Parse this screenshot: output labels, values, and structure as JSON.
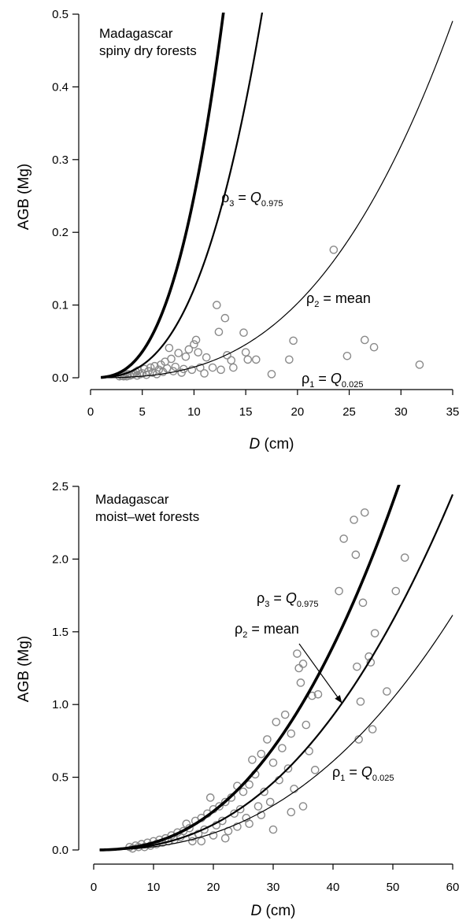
{
  "chart_data": [
    {
      "type": "scatter",
      "region_label_lines": [
        "Madagascar",
        "spiny dry forests"
      ],
      "xlabel_italic": "D",
      "xlabel_rest": " (cm)",
      "ylabel": "AGB (Mg)",
      "xlim": [
        0,
        35
      ],
      "ylim": [
        0,
        0.5
      ],
      "x_ticks": [
        0,
        5,
        10,
        15,
        20,
        25,
        30,
        35
      ],
      "x_tick_labels": [
        "0",
        "5",
        "10",
        "15",
        "20",
        "25",
        "30",
        "35"
      ],
      "y_ticks": [
        0,
        0.1,
        0.2,
        0.3,
        0.4,
        0.5
      ],
      "y_tick_labels": [
        "0.0",
        "0.1",
        "0.2",
        "0.3",
        "0.4",
        "0.5"
      ],
      "curves": [
        {
          "symbol": "ρ",
          "sub": "3",
          "operator": " = ",
          "value": "Q",
          "value_sub": "0.975",
          "value_italic": true,
          "coef": 0.000395,
          "exp": 2.8,
          "x_start": 1,
          "line_weight": "heavy"
        },
        {
          "symbol": "ρ",
          "sub": "2",
          "operator": " = ",
          "value": "mean",
          "value_sub": "",
          "value_italic": false,
          "coef": 0.000193,
          "exp": 2.8,
          "x_start": 1,
          "line_weight": "medium"
        },
        {
          "symbol": "ρ",
          "sub": "1",
          "operator": " = ",
          "value": "Q",
          "value_sub": "0.025",
          "value_italic": true,
          "coef": 2.33e-05,
          "exp": 2.8,
          "x_start": 1,
          "line_weight": "light"
        }
      ],
      "points": [
        [
          2.8,
          0.002
        ],
        [
          3.0,
          0.003
        ],
        [
          3.2,
          0.002
        ],
        [
          3.3,
          0.004
        ],
        [
          3.5,
          0.002
        ],
        [
          3.6,
          0.005
        ],
        [
          3.8,
          0.003
        ],
        [
          4.0,
          0.004
        ],
        [
          4.2,
          0.006
        ],
        [
          4.4,
          0.008
        ],
        [
          4.5,
          0.003
        ],
        [
          4.6,
          0.01
        ],
        [
          4.8,
          0.005
        ],
        [
          5.0,
          0.006
        ],
        [
          5.2,
          0.012
        ],
        [
          5.4,
          0.004
        ],
        [
          5.6,
          0.009
        ],
        [
          5.8,
          0.014
        ],
        [
          6.0,
          0.007
        ],
        [
          6.2,
          0.016
        ],
        [
          6.4,
          0.005
        ],
        [
          6.6,
          0.011
        ],
        [
          6.8,
          0.018
        ],
        [
          7.0,
          0.008
        ],
        [
          7.2,
          0.022
        ],
        [
          7.4,
          0.013
        ],
        [
          7.6,
          0.041
        ],
        [
          7.8,
          0.026
        ],
        [
          8.0,
          0.009
        ],
        [
          8.2,
          0.015
        ],
        [
          8.5,
          0.034
        ],
        [
          8.8,
          0.007
        ],
        [
          9.0,
          0.012
        ],
        [
          9.2,
          0.029
        ],
        [
          9.5,
          0.039
        ],
        [
          9.8,
          0.011
        ],
        [
          10.0,
          0.046
        ],
        [
          10.2,
          0.052
        ],
        [
          10.4,
          0.035
        ],
        [
          10.6,
          0.014
        ],
        [
          11.0,
          0.006
        ],
        [
          11.2,
          0.028
        ],
        [
          11.8,
          0.014
        ],
        [
          12.2,
          0.1
        ],
        [
          12.4,
          0.063
        ],
        [
          12.6,
          0.011
        ],
        [
          13.0,
          0.082
        ],
        [
          13.2,
          0.031
        ],
        [
          13.6,
          0.024
        ],
        [
          13.8,
          0.014
        ],
        [
          14.8,
          0.062
        ],
        [
          15.0,
          0.035
        ],
        [
          15.2,
          0.025
        ],
        [
          16.0,
          0.025
        ],
        [
          17.5,
          0.005
        ],
        [
          19.2,
          0.025
        ],
        [
          19.6,
          0.051
        ],
        [
          23.5,
          0.176
        ],
        [
          24.8,
          0.03
        ],
        [
          26.5,
          0.052
        ],
        [
          27.4,
          0.042
        ],
        [
          31.8,
          0.018
        ]
      ]
    },
    {
      "type": "scatter",
      "region_label_lines": [
        "Madagascar",
        "moist–wet forests"
      ],
      "xlabel_italic": "D",
      "xlabel_rest": " (cm)",
      "ylabel": "AGB (Mg)",
      "xlim": [
        0,
        60
      ],
      "ylim": [
        0,
        2.5
      ],
      "x_ticks": [
        0,
        10,
        20,
        30,
        40,
        50,
        60
      ],
      "x_tick_labels": [
        "0",
        "10",
        "20",
        "30",
        "40",
        "50",
        "60"
      ],
      "y_ticks": [
        0,
        0.5,
        1.0,
        1.5,
        2.0,
        2.5
      ],
      "y_tick_labels": [
        "0.0",
        "0.5",
        "1.0",
        "1.5",
        "2.0",
        "2.5"
      ],
      "curves": [
        {
          "symbol": "ρ",
          "sub": "3",
          "operator": " = ",
          "value": "Q",
          "value_sub": "0.975",
          "value_italic": true,
          "coef": 0.0002,
          "exp": 2.4,
          "x_start": 1,
          "line_weight": "heavy"
        },
        {
          "symbol": "ρ",
          "sub": "2",
          "operator": " = ",
          "value": "mean",
          "value_sub": "",
          "value_italic": false,
          "coef": 0.000132,
          "exp": 2.4,
          "x_start": 1,
          "line_weight": "medium"
        },
        {
          "symbol": "ρ",
          "sub": "1",
          "operator": " = ",
          "value": "Q",
          "value_sub": "0.025",
          "value_italic": true,
          "coef": 8.72e-05,
          "exp": 2.4,
          "x_start": 1,
          "line_weight": "light"
        }
      ],
      "points": [
        [
          6,
          0.02
        ],
        [
          6.5,
          0.01
        ],
        [
          7,
          0.03
        ],
        [
          7.5,
          0.02
        ],
        [
          8,
          0.04
        ],
        [
          8.5,
          0.02
        ],
        [
          9,
          0.05
        ],
        [
          9.5,
          0.03
        ],
        [
          10,
          0.06
        ],
        [
          10.5,
          0.04
        ],
        [
          11,
          0.07
        ],
        [
          11.5,
          0.05
        ],
        [
          12,
          0.08
        ],
        [
          12.5,
          0.06
        ],
        [
          13,
          0.1
        ],
        [
          13.5,
          0.07
        ],
        [
          14,
          0.12
        ],
        [
          14.5,
          0.09
        ],
        [
          15,
          0.13
        ],
        [
          15.5,
          0.18
        ],
        [
          16,
          0.15
        ],
        [
          16.5,
          0.09
        ],
        [
          17,
          0.2
        ],
        [
          17.5,
          0.11
        ],
        [
          18,
          0.22
        ],
        [
          18.5,
          0.14
        ],
        [
          19,
          0.25
        ],
        [
          19.5,
          0.36
        ],
        [
          20,
          0.28
        ],
        [
          20.5,
          0.17
        ],
        [
          21,
          0.3
        ],
        [
          21.5,
          0.2
        ],
        [
          22,
          0.33
        ],
        [
          22.5,
          0.13
        ],
        [
          23,
          0.36
        ],
        [
          23.5,
          0.25
        ],
        [
          24,
          0.44
        ],
        [
          24.5,
          0.28
        ],
        [
          25,
          0.4
        ],
        [
          25.5,
          0.22
        ],
        [
          26,
          0.45
        ],
        [
          26.5,
          0.62
        ],
        [
          27,
          0.52
        ],
        [
          27.5,
          0.3
        ],
        [
          28,
          0.66
        ],
        [
          28.5,
          0.4
        ],
        [
          29,
          0.76
        ],
        [
          29.5,
          0.33
        ],
        [
          30,
          0.6
        ],
        [
          30.5,
          0.88
        ],
        [
          31,
          0.48
        ],
        [
          31.5,
          0.7
        ],
        [
          32,
          0.93
        ],
        [
          32.5,
          0.56
        ],
        [
          33,
          0.8
        ],
        [
          33.5,
          0.42
        ],
        [
          34,
          1.35
        ],
        [
          34.3,
          1.25
        ],
        [
          34.6,
          1.15
        ],
        [
          35,
          1.28
        ],
        [
          35.5,
          0.86
        ],
        [
          36,
          0.68
        ],
        [
          36.5,
          1.06
        ],
        [
          37,
          0.55
        ],
        [
          37.5,
          1.07
        ],
        [
          41,
          1.78
        ],
        [
          41.8,
          2.14
        ],
        [
          43.5,
          2.27
        ],
        [
          43.8,
          2.03
        ],
        [
          44,
          1.26
        ],
        [
          44.3,
          0.76
        ],
        [
          44.6,
          1.02
        ],
        [
          45,
          1.7
        ],
        [
          45.3,
          2.32
        ],
        [
          46,
          1.33
        ],
        [
          46.3,
          1.29
        ],
        [
          46.6,
          0.83
        ],
        [
          47,
          1.49
        ],
        [
          49,
          1.09
        ],
        [
          50.5,
          1.78
        ],
        [
          52,
          2.01
        ],
        [
          18,
          0.06
        ],
        [
          22,
          0.08
        ],
        [
          26,
          0.18
        ],
        [
          30,
          0.14
        ],
        [
          33,
          0.26
        ],
        [
          35,
          0.3
        ],
        [
          28,
          0.24
        ],
        [
          24,
          0.16
        ],
        [
          20,
          0.1
        ],
        [
          16.5,
          0.06
        ]
      ]
    }
  ]
}
